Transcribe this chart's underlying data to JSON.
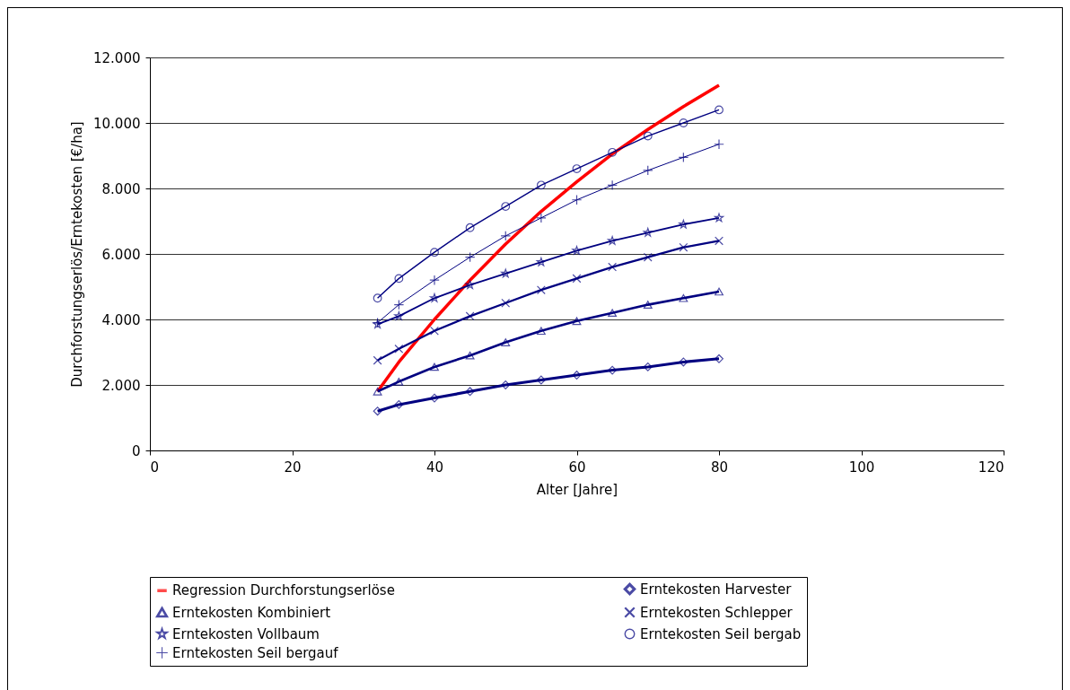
{
  "chart_data": {
    "type": "line",
    "xlabel": "Alter [Jahre]",
    "ylabel": "Durchforstungserlös/Erntekosten [€/ha]",
    "x": [
      32,
      35,
      40,
      45,
      50,
      55,
      60,
      65,
      70,
      75,
      80
    ],
    "xlim": [
      0,
      120
    ],
    "xticks": [
      0,
      20,
      40,
      60,
      80,
      100,
      120
    ],
    "ylim": [
      0,
      12000
    ],
    "yticks": [
      {
        "value": 0,
        "label": "0"
      },
      {
        "value": 2000,
        "label": "2.000"
      },
      {
        "value": 4000,
        "label": "4.000"
      },
      {
        "value": 6000,
        "label": "6.000"
      },
      {
        "value": 8000,
        "label": "8.000"
      },
      {
        "value": 10000,
        "label": "10.000"
      },
      {
        "value": 12000,
        "label": "12.000"
      }
    ],
    "grid": "y",
    "legend": "bottom",
    "line_style": "solid",
    "series": [
      {
        "name": "Regression Durchforstungserlöse",
        "color": "#ff0000",
        "marker": "none",
        "values": [
          1800,
          2700,
          4000,
          5200,
          6300,
          7300,
          8200,
          9050,
          9800,
          10500,
          11150
        ]
      },
      {
        "name": "Erntekosten Harvester",
        "color": "#000080",
        "marker": "diamond",
        "values": [
          1200,
          1400,
          1600,
          1800,
          2000,
          2150,
          2300,
          2450,
          2550,
          2700,
          2800
        ]
      },
      {
        "name": "Erntekosten Kombiniert",
        "color": "#000080",
        "marker": "triangle",
        "values": [
          1800,
          2100,
          2550,
          2900,
          3300,
          3650,
          3950,
          4200,
          4450,
          4650,
          4850
        ]
      },
      {
        "name": "Erntekosten Schlepper",
        "color": "#000080",
        "marker": "cross",
        "values": [
          2750,
          3100,
          3650,
          4100,
          4500,
          4900,
          5250,
          5600,
          5900,
          6200,
          6400
        ]
      },
      {
        "name": "Erntekosten Vollbaum",
        "color": "#000080",
        "marker": "star",
        "values": [
          3850,
          4100,
          4650,
          5050,
          5400,
          5750,
          6100,
          6400,
          6650,
          6900,
          7100
        ]
      },
      {
        "name": "Erntekosten Seil bergab",
        "color": "#000080",
        "marker": "circle",
        "values": [
          4650,
          5250,
          6050,
          6800,
          7450,
          8100,
          8600,
          9100,
          9600,
          10000,
          10400
        ]
      },
      {
        "name": "Erntekosten Seil bergauf",
        "color": "#000080",
        "marker": "plus",
        "values": [
          3900,
          4450,
          5200,
          5900,
          6550,
          7100,
          7650,
          8100,
          8550,
          8950,
          9350
        ]
      }
    ]
  }
}
